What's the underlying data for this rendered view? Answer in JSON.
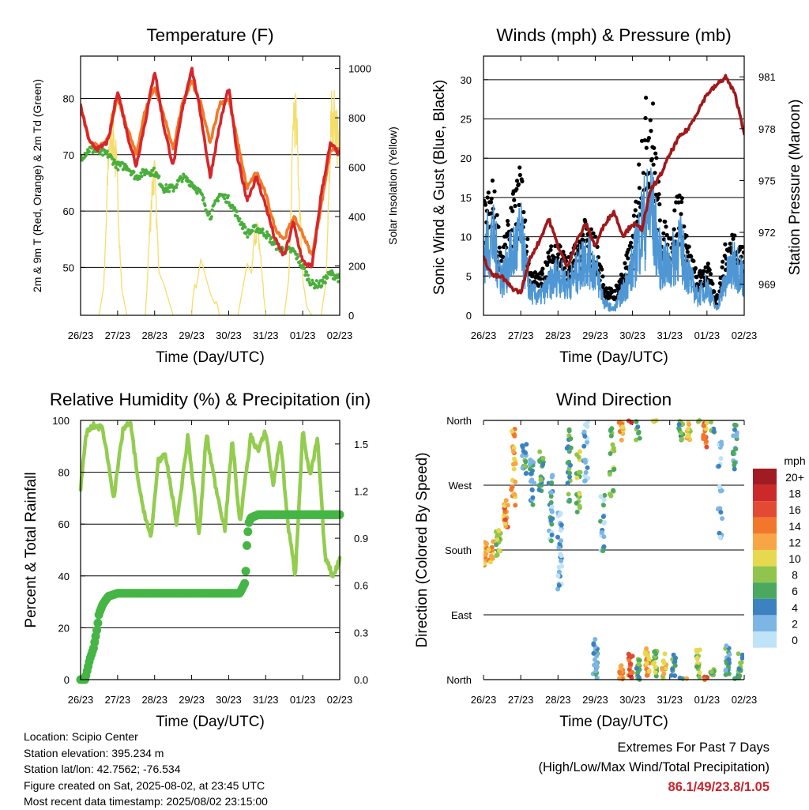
{
  "x_ticks": [
    "26/23",
    "27/23",
    "28/23",
    "29/23",
    "30/23",
    "31/23",
    "01/23",
    "02/23"
  ],
  "colors": {
    "temp2m": "#d7262b",
    "temp9m": "#f07a28",
    "dew": "#4aae3c",
    "solar": "#f5dd6b",
    "gust": "#000000",
    "sonic": "#4f97d4",
    "pressure": "#a0191b",
    "rh": "#93cc4f",
    "precip": "#45b545"
  },
  "chart_data": [
    {
      "id": "temperature",
      "type": "line",
      "title": "Temperature (F)",
      "xlabel": "Time (Day/UTC)",
      "ylabel": "2m & 9m T (Red, Orange) & 2m Td (Green)",
      "y2label": "Solar Insolation (Yellow)",
      "ylim": [
        41.5,
        87.5
      ],
      "yticks": [
        50,
        60,
        70,
        80
      ],
      "y2lim": [
        0,
        1050
      ],
      "y2ticks": [
        0,
        200,
        400,
        600,
        800,
        1000
      ],
      "x": [
        0,
        0.25,
        0.5,
        0.75,
        1.0,
        1.25,
        1.5,
        1.75,
        2.0,
        2.25,
        2.5,
        2.75,
        3.0,
        3.25,
        3.5,
        3.75,
        4.0,
        4.25,
        4.5,
        4.75,
        5.0,
        5.25,
        5.5,
        5.75,
        6.0,
        6.25,
        6.5,
        6.75,
        7.0
      ],
      "series": [
        {
          "key": "temp2m",
          "values": [
            78.5,
            72,
            71,
            72.5,
            81.5,
            74,
            68,
            76,
            85,
            75,
            68,
            78,
            85.5,
            77,
            66,
            75,
            82,
            69,
            62,
            66,
            61,
            55,
            52,
            58,
            51,
            50,
            63,
            72,
            70
          ]
        },
        {
          "key": "temp9m",
          "values": [
            78.5,
            72,
            71.5,
            73,
            80,
            75,
            70,
            78,
            82,
            77,
            71,
            79,
            83,
            79,
            72,
            79,
            80,
            72,
            64,
            67,
            63,
            57,
            55,
            59,
            56,
            52,
            61,
            71,
            71
          ]
        },
        {
          "key": "dew",
          "values": [
            69.5,
            71,
            70.5,
            70,
            68,
            68,
            66,
            67,
            67,
            64,
            64,
            66,
            65,
            63,
            59,
            63,
            62,
            59,
            56,
            57,
            56,
            54,
            53,
            53,
            50,
            47,
            47,
            49,
            48
          ]
        },
        {
          "key": "solar",
          "values": [
            0,
            0,
            0,
            780,
            640,
            0,
            0,
            0,
            720,
            420,
            0,
            0,
            0,
            760,
            300,
            0,
            0,
            0,
            700,
            420,
            0,
            0,
            0,
            1000,
            200,
            0,
            0,
            880,
            700
          ]
        }
      ]
    },
    {
      "id": "winds",
      "type": "line",
      "title": "Winds (mph) & Pressure (mb)",
      "xlabel": "Time (Day/UTC)",
      "ylabel": "Sonic Wind & Gust (Blue, Black)",
      "y2label": "Station Pressure (Maroon)",
      "ylim": [
        0,
        33
      ],
      "yticks": [
        0,
        5,
        10,
        15,
        20,
        25,
        30
      ],
      "y2lim": [
        967.2,
        982.2
      ],
      "y2ticks": [
        969,
        972,
        975,
        978,
        981
      ],
      "x": [
        0,
        0.25,
        0.5,
        0.75,
        1.0,
        1.25,
        1.5,
        1.75,
        2.0,
        2.25,
        2.5,
        2.75,
        3.0,
        3.25,
        3.5,
        3.75,
        4.0,
        4.25,
        4.5,
        4.75,
        5.0,
        5.25,
        5.5,
        5.75,
        6.0,
        6.25,
        6.5,
        6.75,
        7.0
      ],
      "series": [
        {
          "key": "gust",
          "values": [
            14,
            17,
            8,
            14,
            19,
            6,
            5,
            8,
            10,
            7,
            9,
            12,
            10,
            4,
            3,
            6,
            10,
            24,
            30,
            13,
            10,
            17,
            9,
            5,
            7,
            2,
            9,
            11,
            8
          ]
        },
        {
          "key": "sonic",
          "values": [
            11,
            13,
            6,
            10,
            13,
            4,
            3,
            5,
            7,
            5,
            7,
            10,
            8,
            2,
            1,
            4,
            8,
            15,
            18,
            9,
            8,
            12,
            7,
            3,
            5,
            1,
            6,
            9,
            6
          ]
        },
        {
          "key": "pressure",
          "values": [
            970.5,
            969.5,
            969.4,
            968.8,
            968.5,
            970.5,
            971.5,
            972.8,
            971.2,
            970.0,
            971.5,
            972.5,
            971.2,
            972.5,
            973.2,
            971.8,
            972.5,
            972.2,
            974.5,
            975.3,
            976.5,
            977.5,
            978.0,
            979.0,
            980.0,
            980.5,
            981.0,
            980.0,
            977.8
          ]
        }
      ]
    },
    {
      "id": "humidity",
      "type": "line",
      "title": "Relative Humidity (%) & Precipitation (in)",
      "xlabel": "Time (Day/UTC)",
      "ylabel": "Percent & Total Rainfall",
      "ylim": [
        0,
        100
      ],
      "yticks": [
        0,
        20,
        40,
        60,
        80,
        100
      ],
      "y2lim": [
        0,
        1.65
      ],
      "y2ticks": [
        "0.0",
        "0.3",
        "0.6",
        "0.9",
        "1.2",
        "1.5"
      ],
      "series": [
        {
          "key": "rh",
          "x": [
            0,
            0.15,
            0.35,
            0.6,
            0.9,
            1.15,
            1.35,
            1.6,
            1.9,
            2.1,
            2.3,
            2.6,
            2.9,
            3.2,
            3.4,
            3.6,
            3.9,
            4.1,
            4.3,
            4.6,
            4.8,
            5.0,
            5.2,
            5.4,
            5.6,
            5.8,
            6.0,
            6.2,
            6.4,
            6.6,
            6.8,
            7.0
          ],
          "values": [
            73,
            95,
            98,
            97,
            70,
            97,
            99,
            72,
            54,
            85,
            86,
            60,
            94,
            55,
            95,
            78,
            58,
            93,
            60,
            94,
            88,
            96,
            75,
            93,
            60,
            40,
            96,
            78,
            93,
            48,
            40,
            46
          ]
        },
        {
          "key": "precip",
          "x": [
            0,
            0.12,
            0.25,
            0.35,
            0.45,
            0.5,
            0.55,
            0.6,
            0.75,
            1.0,
            2.0,
            3.0,
            4.0,
            4.3,
            4.45,
            4.5,
            4.55,
            4.6,
            4.8,
            5.5,
            6.5,
            7.0
          ],
          "values": [
            0,
            0,
            0.13,
            0.2,
            0.33,
            0.42,
            0.45,
            0.48,
            0.53,
            0.55,
            0.55,
            0.55,
            0.55,
            0.55,
            0.62,
            0.9,
            1.0,
            1.03,
            1.05,
            1.05,
            1.05,
            1.05
          ]
        }
      ]
    },
    {
      "id": "direction",
      "type": "scatter",
      "title": "Wind Direction",
      "xlabel": "Time (Day/UTC)",
      "ylabel": "Direction (Colored By Speed)",
      "ylim": [
        0,
        360
      ],
      "ytick_labels": [
        "North",
        "East",
        "South",
        "West",
        "North"
      ],
      "legend": {
        "title": "mph",
        "labels": [
          "20+",
          "18",
          "16",
          "14",
          "12",
          "10",
          "8",
          "6",
          "4",
          "2",
          "0"
        ],
        "colors": [
          "#a01c22",
          "#cc2a2a",
          "#e24a33",
          "#f2772c",
          "#f8a545",
          "#e7d94f",
          "#8fc54d",
          "#4aa95f",
          "#3c82c0",
          "#7db6e4",
          "#bfe3f7"
        ]
      },
      "clusters": [
        {
          "x": 0.05,
          "dirs": [
            165,
            170,
            180,
            190
          ],
          "speed": 12
        },
        {
          "x": 0.2,
          "dirs": [
            170,
            175,
            185
          ],
          "speed": 12
        },
        {
          "x": 0.4,
          "dirs": [
            180,
            190,
            200,
            205
          ],
          "speed": 8
        },
        {
          "x": 0.6,
          "dirs": [
            215,
            225,
            235,
            245
          ],
          "speed": 13
        },
        {
          "x": 0.8,
          "dirs": [
            250,
            270,
            300,
            320,
            340
          ],
          "speed": 12
        },
        {
          "x": 1.1,
          "dirs": [
            290,
            300,
            310,
            320
          ],
          "speed": 5
        },
        {
          "x": 1.3,
          "dirs": [
            250,
            270,
            290,
            305
          ],
          "speed": 4
        },
        {
          "x": 1.55,
          "dirs": [
            270,
            285,
            300,
            310
          ],
          "speed": 6
        },
        {
          "x": 1.8,
          "dirs": [
            200,
            220,
            240,
            260,
            280
          ],
          "speed": 3
        },
        {
          "x": 2.05,
          "dirs": [
            130,
            150,
            170,
            190,
            210,
            230
          ],
          "speed": 2
        },
        {
          "x": 2.3,
          "dirs": [
            250,
            280,
            300,
            320,
            340
          ],
          "speed": 5
        },
        {
          "x": 2.55,
          "dirs": [
            240,
            260,
            280,
            310
          ],
          "speed": 8
        },
        {
          "x": 2.75,
          "dirs": [
            280,
            300,
            330,
            350
          ],
          "speed": 2
        },
        {
          "x": 3.0,
          "dirs": [
            10,
            20,
            30,
            40,
            50
          ],
          "speed": 4
        },
        {
          "x": 3.2,
          "dirs": [
            180,
            200,
            220,
            250
          ],
          "speed": 3
        },
        {
          "x": 3.45,
          "dirs": [
            260,
            290,
            320,
            345
          ],
          "speed": 8
        },
        {
          "x": 3.7,
          "dirs": [
            2,
            8,
            15,
            340,
            350,
            358
          ],
          "speed": 12
        },
        {
          "x": 3.95,
          "dirs": [
            5,
            15,
            25,
            35
          ],
          "speed": 16
        },
        {
          "x": 4.15,
          "dirs": [
            8,
            18,
            28,
            340,
            355
          ],
          "speed": 6
        },
        {
          "x": 4.4,
          "dirs": [
            10,
            20,
            30,
            40
          ],
          "speed": 12
        },
        {
          "x": 4.6,
          "dirs": [
            5,
            15,
            25,
            35
          ],
          "speed": 8
        },
        {
          "x": 4.85,
          "dirs": [
            8,
            18,
            28
          ],
          "speed": 10
        },
        {
          "x": 5.1,
          "dirs": [
            10,
            20,
            30
          ],
          "speed": 6
        },
        {
          "x": 5.3,
          "dirs": [
            340,
            350,
            355
          ],
          "speed": 6
        },
        {
          "x": 5.5,
          "dirs": [
            340,
            345,
            355
          ],
          "speed": 10
        },
        {
          "x": 5.75,
          "dirs": [
            5,
            15,
            25,
            35
          ],
          "speed": 8
        },
        {
          "x": 5.95,
          "dirs": [
            330,
            340,
            350,
            358
          ],
          "speed": 13
        },
        {
          "x": 6.15,
          "dirs": [
            5,
            15,
            350
          ],
          "speed": 6
        },
        {
          "x": 6.35,
          "dirs": [
            200,
            230,
            260,
            300,
            330
          ],
          "speed": 2
        },
        {
          "x": 6.55,
          "dirs": [
            10,
            20,
            30,
            40
          ],
          "speed": 5
        },
        {
          "x": 6.75,
          "dirs": [
            300,
            320,
            340,
            355
          ],
          "speed": 4
        },
        {
          "x": 6.9,
          "dirs": [
            10,
            20,
            30
          ],
          "speed": 6
        }
      ]
    }
  ],
  "info": {
    "location": "Location: Scipio Center",
    "elevation": "Station elevation: 395.234 m",
    "latlon": "Station lat/lon: 42.7562; -76.534",
    "created": "Figure created on Sat, 2025-08-02, at 23:45 UTC",
    "latest": "Most recent data timestamp: 2025/08/02 23:15:00"
  },
  "extremes": {
    "heading": "Extremes For Past 7 Days",
    "subheading": "(High/Low/Max Wind/Total Precipitation)",
    "values": "86.1/49/23.8/1.05"
  }
}
